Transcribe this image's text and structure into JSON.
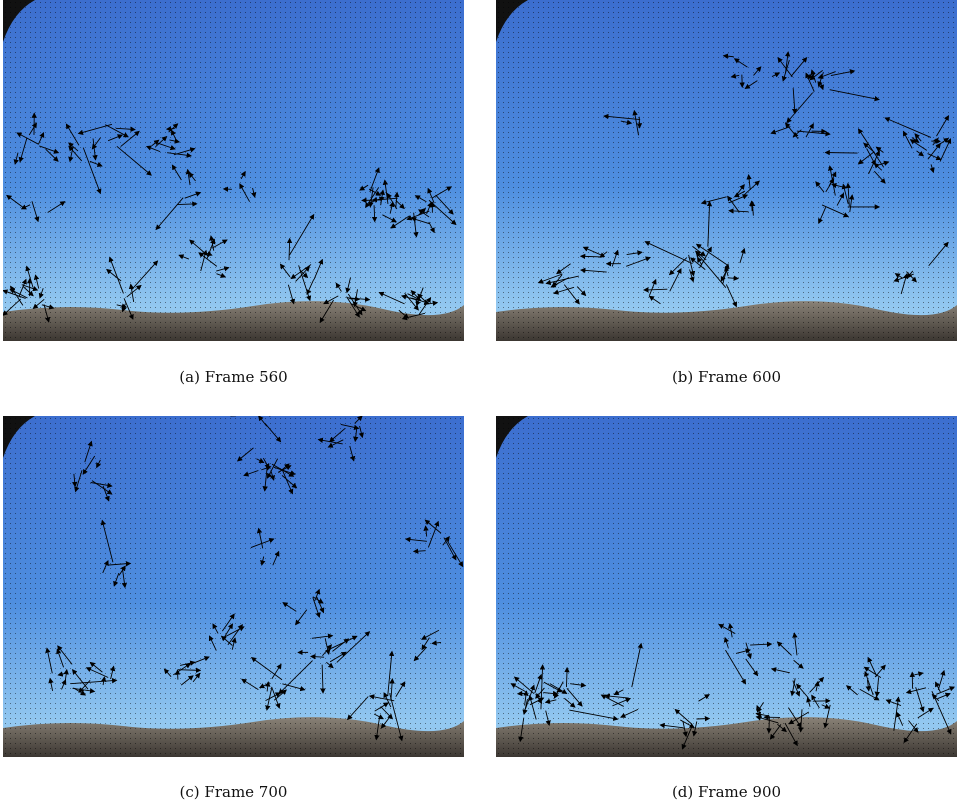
{
  "figure": {
    "panels": [
      {
        "caption": "(a) Frame 560"
      },
      {
        "caption": "(b) Frame 600"
      },
      {
        "caption": "(c) Frame 700"
      },
      {
        "caption": "(d) Frame 900"
      }
    ]
  }
}
